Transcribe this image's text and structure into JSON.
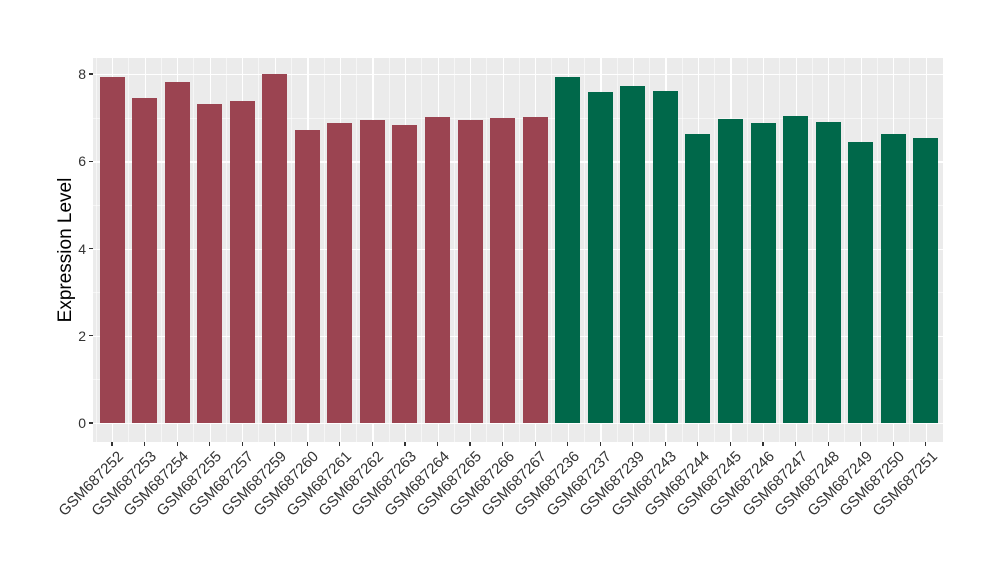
{
  "chart_data": {
    "type": "bar",
    "title": "",
    "xlabel": "",
    "ylabel": "Expression Level",
    "categories": [
      "GSM687252",
      "GSM687253",
      "GSM687254",
      "GSM687255",
      "GSM687257",
      "GSM687259",
      "GSM687260",
      "GSM687261",
      "GSM687262",
      "GSM687263",
      "GSM687264",
      "GSM687265",
      "GSM687266",
      "GSM687267",
      "GSM687236",
      "GSM687237",
      "GSM687239",
      "GSM687243",
      "GSM687244",
      "GSM687245",
      "GSM687246",
      "GSM687247",
      "GSM687248",
      "GSM687249",
      "GSM687250",
      "GSM687251"
    ],
    "values": [
      7.94,
      7.46,
      7.81,
      7.32,
      7.38,
      8.0,
      6.71,
      6.88,
      6.95,
      6.82,
      7.01,
      6.95,
      7.0,
      7.01,
      7.92,
      7.58,
      7.73,
      7.61,
      6.62,
      6.96,
      6.88,
      7.03,
      6.91,
      6.44,
      6.63,
      6.54
    ],
    "bar_colors": [
      "#9B4451",
      "#9B4451",
      "#9B4451",
      "#9B4451",
      "#9B4451",
      "#9B4451",
      "#9B4451",
      "#9B4451",
      "#9B4451",
      "#9B4451",
      "#9B4451",
      "#9B4451",
      "#9B4451",
      "#9B4451",
      "#00684A",
      "#00684A",
      "#00684A",
      "#00684A",
      "#00684A",
      "#00684A",
      "#00684A",
      "#00684A",
      "#00684A",
      "#00684A",
      "#00684A",
      "#00684A"
    ],
    "yticks": [
      0,
      2,
      4,
      6,
      8
    ],
    "yticks_minor": [
      1,
      3,
      5,
      7
    ],
    "ylim": [
      -0.4,
      8.4
    ],
    "legend": "none",
    "grid": "on",
    "panel_bg": "#EBEBEB",
    "grid_color": "#FFFFFF",
    "tick_color": "#333333",
    "axis_text_color": "#333333"
  }
}
